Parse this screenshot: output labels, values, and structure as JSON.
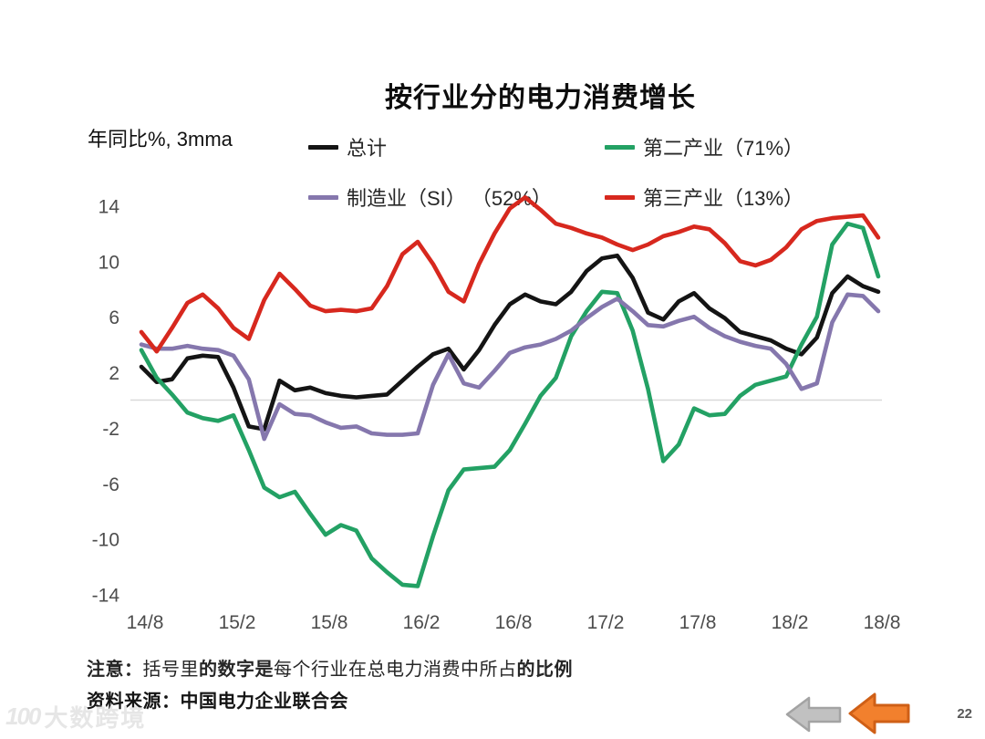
{
  "page_number": "22",
  "watermark": {
    "logo": "100",
    "text": "大数跨境"
  },
  "notes": {
    "note_parts": [
      {
        "text": "注意：",
        "bold": true
      },
      {
        "text": "括号里",
        "bold": false
      },
      {
        "text": "的数字是",
        "bold": true
      },
      {
        "text": "每个行业在总电力消费中所占",
        "bold": false
      },
      {
        "text": "的比例",
        "bold": true
      }
    ],
    "source": "资料来源：中国电力企业联合会"
  },
  "nav": {
    "back_gray": "previous-page",
    "back_orange": "previous-page"
  },
  "chart_data": {
    "type": "line",
    "title": "按行业分的电力消费增长",
    "y_axis_label": "年同比%, 3mma",
    "ylim": [
      -15,
      15.5
    ],
    "grid": "zero-line-only",
    "legend_position": "top",
    "y_ticks": [
      14,
      10,
      6,
      2,
      -2,
      -6,
      -10,
      -14
    ],
    "x_tick_labels": [
      "14/8",
      "15/2",
      "15/8",
      "16/2",
      "16/8",
      "17/2",
      "17/8",
      "18/2",
      "18/8"
    ],
    "x": [
      "14/8",
      "14/9",
      "14/10",
      "14/11",
      "14/12",
      "15/1",
      "15/2",
      "15/3",
      "15/4",
      "15/5",
      "15/6",
      "15/7",
      "15/8",
      "15/9",
      "15/10",
      "15/11",
      "15/12",
      "16/1",
      "16/2",
      "16/3",
      "16/4",
      "16/5",
      "16/6",
      "16/7",
      "16/8",
      "16/9",
      "16/10",
      "16/11",
      "16/12",
      "17/1",
      "17/2",
      "17/3",
      "17/4",
      "17/5",
      "17/6",
      "17/7",
      "17/8",
      "17/9",
      "17/10",
      "17/11",
      "17/12",
      "18/1",
      "18/2",
      "18/3",
      "18/4",
      "18/5",
      "18/6",
      "18/7",
      "18/8"
    ],
    "series": [
      {
        "id": "total",
        "name": "总计",
        "color": "#141414",
        "values": [
          2.4,
          1.3,
          1.5,
          3.0,
          3.2,
          3.1,
          0.9,
          -1.9,
          -2.1,
          1.4,
          0.7,
          0.9,
          0.5,
          0.3,
          0.2,
          0.3,
          0.4,
          1.4,
          2.4,
          3.3,
          3.7,
          2.2,
          3.6,
          5.4,
          6.9,
          7.6,
          7.1,
          6.9,
          7.8,
          9.3,
          10.2,
          10.4,
          8.8,
          6.3,
          5.8,
          7.1,
          7.7,
          6.6,
          5.9,
          4.9,
          4.6,
          4.3,
          3.7,
          3.3,
          4.5,
          7.7,
          8.9,
          8.2,
          7.8
        ]
      },
      {
        "id": "secondary-industry",
        "name": "第二产业（71%）",
        "color": "#23a164",
        "values": [
          3.6,
          1.6,
          0.4,
          -0.9,
          -1.3,
          -1.5,
          -1.1,
          -3.6,
          -6.3,
          -7.0,
          -6.6,
          -8.2,
          -9.7,
          -9.0,
          -9.4,
          -11.4,
          -12.4,
          -13.3,
          -13.4,
          -9.8,
          -6.5,
          -5.0,
          -4.9,
          -4.8,
          -3.6,
          -1.7,
          0.3,
          1.6,
          4.6,
          6.4,
          7.8,
          7.7,
          5.0,
          0.8,
          -4.4,
          -3.2,
          -0.6,
          -1.1,
          -1.0,
          0.3,
          1.1,
          1.4,
          1.7,
          4.0,
          6.0,
          11.2,
          12.7,
          12.4,
          8.9
        ]
      },
      {
        "id": "manufacturing",
        "name": "制造业（SI） （52%）",
        "color": "#8577ad",
        "values": [
          4.0,
          3.7,
          3.7,
          3.9,
          3.7,
          3.6,
          3.2,
          1.5,
          -2.8,
          -0.3,
          -1.0,
          -1.1,
          -1.6,
          -2.0,
          -1.9,
          -2.4,
          -2.5,
          -2.5,
          -2.4,
          1.1,
          3.3,
          1.2,
          0.9,
          2.1,
          3.4,
          3.8,
          4.0,
          4.4,
          5.0,
          5.9,
          6.7,
          7.3,
          6.4,
          5.4,
          5.3,
          5.7,
          6.0,
          5.2,
          4.6,
          4.2,
          3.9,
          3.7,
          2.6,
          0.8,
          1.2,
          5.6,
          7.6,
          7.5,
          6.4
        ]
      },
      {
        "id": "tertiary-industry",
        "name": "第三产业（13%）",
        "color": "#d7281e",
        "values": [
          4.9,
          3.5,
          5.2,
          7.0,
          7.6,
          6.6,
          5.2,
          4.4,
          7.2,
          9.1,
          8.0,
          6.8,
          6.4,
          6.5,
          6.4,
          6.6,
          8.2,
          10.5,
          11.4,
          9.8,
          7.8,
          7.1,
          9.8,
          12.0,
          13.8,
          14.6,
          13.7,
          12.7,
          12.4,
          12.0,
          11.7,
          11.2,
          10.8,
          11.2,
          11.8,
          12.1,
          12.5,
          12.3,
          11.3,
          10.0,
          9.7,
          10.1,
          11.0,
          12.3,
          12.9,
          13.1,
          13.2,
          13.3,
          11.7
        ]
      }
    ]
  }
}
